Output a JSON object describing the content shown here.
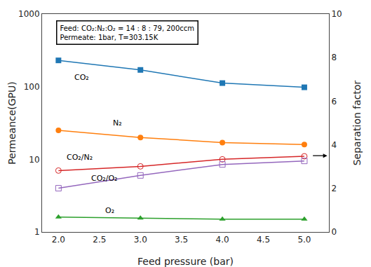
{
  "chart_data": {
    "type": "line",
    "x": [
      2,
      3,
      4,
      5
    ],
    "series": [
      {
        "values": [
          230,
          170,
          112,
          98
        ],
        "marker": "square",
        "line_style": "solid"
      },
      {
        "values": [
          25,
          20,
          17,
          16
        ],
        "marker": "circle",
        "line_style": "solid"
      },
      {
        "values": [
          1.6,
          1.55,
          1.5,
          1.5
        ],
        "marker": "triangle-up",
        "line_style": "solid"
      },
      {
        "values": [
          7.0,
          8.0,
          10.0,
          11.0
        ],
        "marker": "circle-open",
        "line_style": "solid"
      },
      {
        "values": [
          4.0,
          6.0,
          8.5,
          9.5
        ],
        "marker": "square-open",
        "line_style": "solid"
      }
    ],
    "xlabel": "Feed pressure (bar)",
    "ylabel": "Permeance(GPU)",
    "y2label": "Separation factor",
    "xlim": [
      1.8,
      5.3
    ],
    "xticks": [
      {
        "value": 2.0,
        "label": "2.0"
      },
      2.5,
      {
        "value": 3.0,
        "label": "3.0"
      },
      3.5,
      {
        "value": 4.0,
        "label": "4.0"
      },
      4.5,
      {
        "value": 5.0,
        "label": "5.0"
      }
    ],
    "ylim": [
      1,
      1000
    ],
    "yticks": [
      1,
      10,
      100,
      1000
    ],
    "log": "y",
    "y2lim": [
      0,
      10
    ],
    "y2ticks": [
      0,
      2,
      4,
      6,
      8,
      10
    ],
    "grid": false,
    "annotations": [
      {
        "text": "CO₂",
        "x": 2.18,
        "y": 110
      },
      {
        "text": "N₂",
        "x": 2.65,
        "y": 26
      },
      {
        "text": "O₂",
        "x": 2.55,
        "y": 1.62
      },
      {
        "text": "CO₂/N₂",
        "x": 2.08,
        "y": 8.8
      },
      {
        "text": "CO₂/O₂",
        "x": 2.38,
        "y": 4.5
      },
      {
        "text": "Feed: CO₂:N₂:O₂ = 14 : 8 : 79, 200ccm\nPermeate: 1bar, T=303.15K"
      },
      {
        "x": 5.28,
        "y": 3.5,
        "axis": "y2"
      }
    ]
  }
}
